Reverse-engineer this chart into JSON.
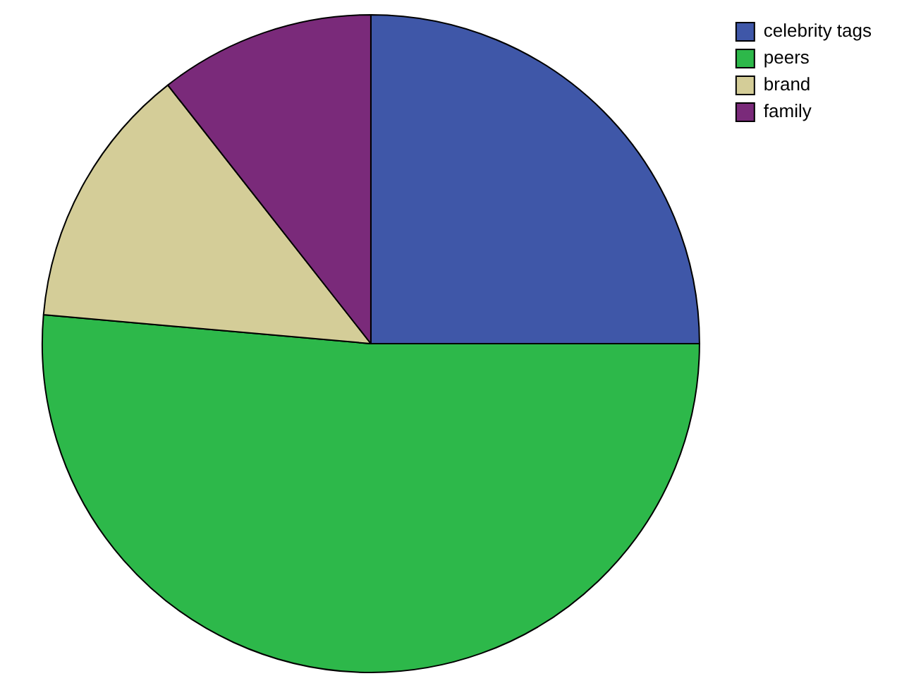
{
  "chart_data": {
    "type": "pie",
    "categories": [
      "celebrity tags",
      "peers",
      "brand",
      "family"
    ],
    "values": [
      25,
      51.4,
      13,
      10.6
    ],
    "colors": [
      "#3f57a8",
      "#2db84a",
      "#d4cd98",
      "#7a2a7a"
    ],
    "legend": "top right"
  }
}
